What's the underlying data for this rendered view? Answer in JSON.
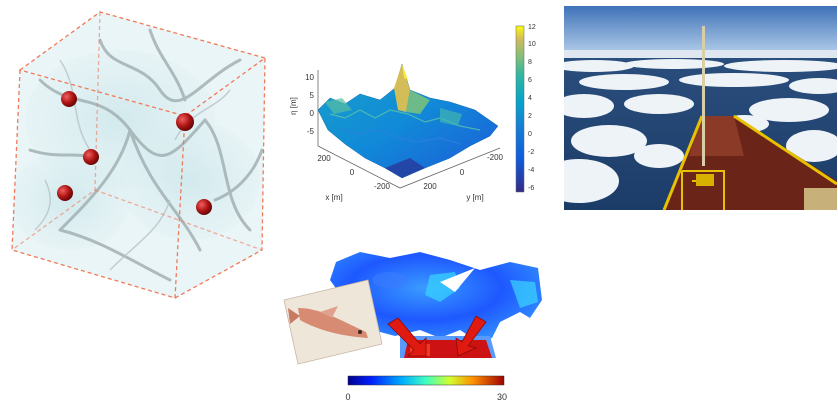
{
  "surface_plot": {
    "z_axis_label": "η [m]",
    "z_ticks": [
      "10",
      "5",
      "0",
      "-5"
    ],
    "x_axis_label": "x [m]",
    "x_ticks": [
      "200",
      "0",
      "-200"
    ],
    "y_axis_label": "y [m]",
    "y_ticks": [
      "-200",
      "0",
      "200"
    ],
    "colorbar_ticks": [
      "12",
      "10",
      "8",
      "6",
      "4",
      "2",
      "0",
      "-2",
      "-4",
      "-6"
    ]
  },
  "flow_map": {
    "colorbar_min": "0",
    "colorbar_max": "30"
  }
}
